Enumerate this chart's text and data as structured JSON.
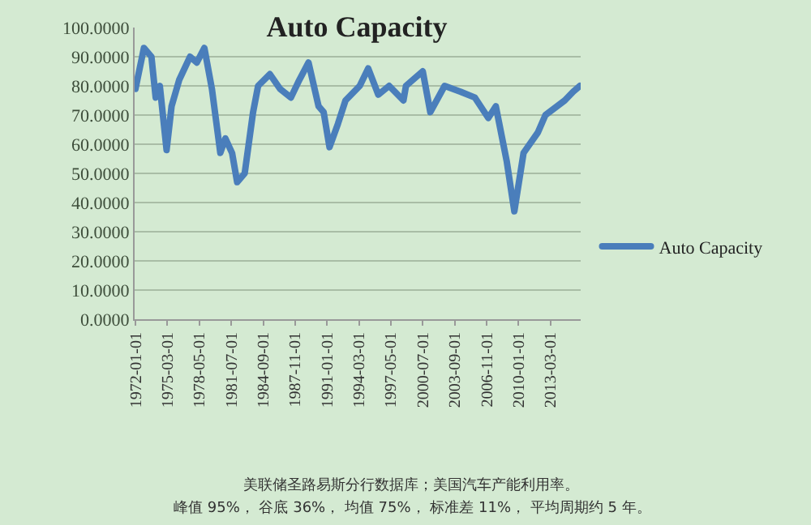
{
  "chart_data": {
    "type": "line",
    "title": "Auto Capacity",
    "x": [
      "1972-01",
      "1972-11",
      "1973-08",
      "1974-01",
      "1974-06",
      "1975-02",
      "1975-08",
      "1976-05",
      "1977-06",
      "1978-02",
      "1978-11",
      "1979-08",
      "1980-06",
      "1980-12",
      "1981-08",
      "1982-02",
      "1982-11",
      "1983-09",
      "1984-03",
      "1985-05",
      "1986-05",
      "1987-06",
      "1988-04",
      "1989-03",
      "1990-03",
      "1990-09",
      "1991-04",
      "1992-02",
      "1992-11",
      "1994-04",
      "1995-02",
      "1996-02",
      "1997-03",
      "1998-08",
      "1998-11",
      "2000-07",
      "2001-04",
      "2002-09",
      "2004-04",
      "2005-09",
      "2007-01",
      "2007-10",
      "2008-11",
      "2009-08",
      "2010-07",
      "2011-12",
      "2012-09",
      "2014-08",
      "2015-06",
      "2016-02"
    ],
    "series": [
      {
        "name": "Auto Capacity",
        "color": "#4a7ebb",
        "values": [
          79,
          93,
          90,
          76,
          80,
          58,
          73,
          82,
          90,
          88,
          93,
          79,
          57,
          62,
          57,
          47,
          50,
          71,
          80,
          84,
          79,
          76,
          82,
          88,
          73,
          71,
          59,
          67,
          75,
          80,
          86,
          77,
          80,
          75,
          80,
          85,
          71,
          80,
          78,
          76,
          69,
          73,
          54,
          37,
          57,
          64,
          70,
          75,
          78,
          80
        ]
      }
    ],
    "xlim": [
      "1971-12-01",
      "2016-03-01"
    ],
    "xticks": [
      "1972-01-01",
      "1975-03-01",
      "1978-05-01",
      "1981-07-01",
      "1984-09-01",
      "1987-11-01",
      "1991-01-01",
      "1994-03-01",
      "1997-05-01",
      "2000-07-01",
      "2003-09-01",
      "2006-11-01",
      "2010-01-01",
      "2013-03-01"
    ],
    "ylim": [
      0,
      100
    ],
    "yticks": [
      {
        "value": 0,
        "label": "0.0000"
      },
      {
        "value": 10,
        "label": "10.0000"
      },
      {
        "value": 20,
        "label": "20.0000"
      },
      {
        "value": 30,
        "label": "30.0000"
      },
      {
        "value": 40,
        "label": "40.0000"
      },
      {
        "value": 50,
        "label": "50.0000"
      },
      {
        "value": 60,
        "label": "60.0000"
      },
      {
        "value": 70,
        "label": "70.0000"
      },
      {
        "value": 80,
        "label": "80.0000"
      },
      {
        "value": 90,
        "label": "90.0000"
      },
      {
        "value": 100,
        "label": "100.0000"
      }
    ],
    "grid": "y",
    "legend": "right",
    "marker": "none",
    "line_style": "solid",
    "annotations": [
      "美联储圣路易斯分行数据库；美国汽车产能利用率。",
      "峰值 95%， 谷底 36%， 均值 75%， 标准差 11%， 平均周期约 5 年。"
    ]
  }
}
